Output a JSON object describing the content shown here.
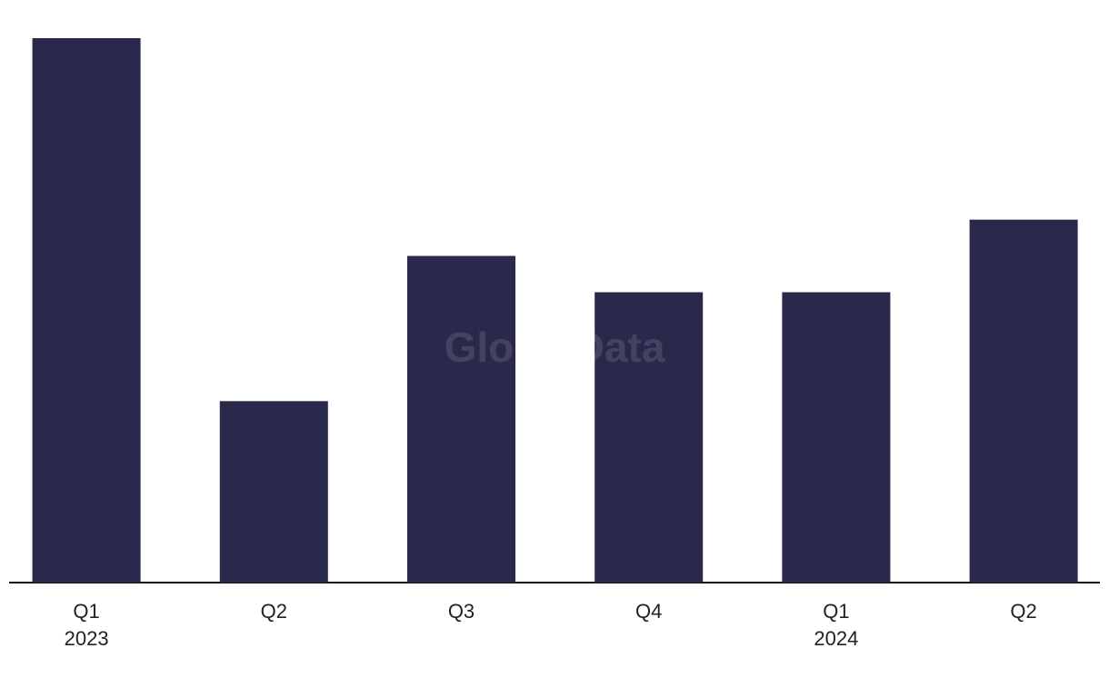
{
  "chart_data": {
    "type": "bar",
    "watermark": "GlobalData",
    "categories": [
      [
        "Q1",
        "2023"
      ],
      [
        "Q2"
      ],
      [
        "Q3"
      ],
      [
        "Q4"
      ],
      [
        "Q1",
        "2024"
      ],
      [
        "Q2"
      ]
    ],
    "values": [
      15,
      5,
      9,
      8,
      8,
      10
    ],
    "color": "#29294b",
    "ylim": [
      0,
      15
    ]
  }
}
